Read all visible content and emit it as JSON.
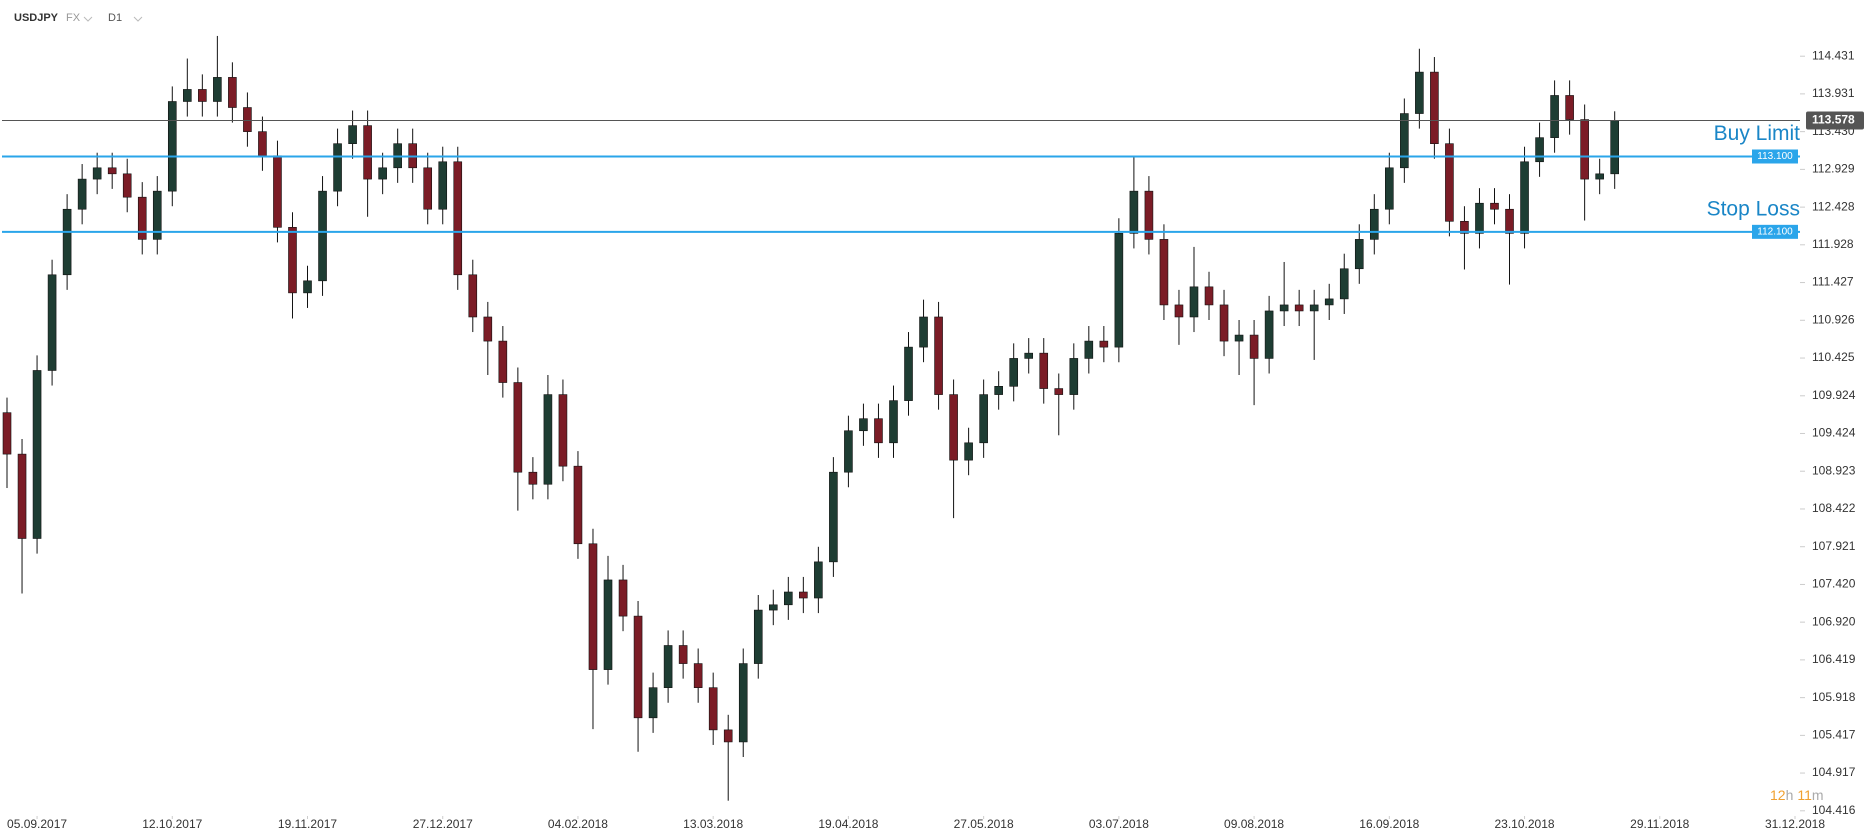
{
  "chart_data": {
    "type": "candlestick",
    "symbol": "USDJPY",
    "market": "FX",
    "interval": "D1",
    "x": [
      0,
      3,
      6,
      9,
      12,
      15,
      18,
      21,
      24,
      27,
      30,
      33,
      36,
      39,
      42,
      45,
      48,
      51,
      54,
      57,
      60,
      63,
      66,
      69,
      72,
      75,
      78,
      81,
      84,
      87,
      90,
      93,
      96,
      99,
      102,
      105,
      108,
      111,
      114,
      117,
      120,
      123,
      126,
      129,
      132,
      135,
      138,
      141,
      144,
      147,
      150,
      153,
      156,
      159,
      162,
      165,
      168,
      171,
      174,
      177,
      180,
      183,
      186,
      189,
      192,
      195,
      198,
      201,
      204,
      207,
      210,
      213,
      216,
      219,
      222,
      225,
      228,
      231,
      234,
      237,
      240,
      243,
      246,
      249,
      252,
      255,
      258,
      261,
      264,
      267,
      270,
      273,
      276,
      279,
      282,
      285,
      288,
      291,
      294,
      297,
      300,
      303,
      306,
      309,
      312,
      315,
      318,
      321
    ],
    "open": [
      109.7,
      109.15,
      108.03,
      110.26,
      111.53,
      112.4,
      112.8,
      112.95,
      112.87,
      112.56,
      112.0,
      112.64,
      113.83,
      113.99,
      113.83,
      114.15,
      113.75,
      113.43,
      113.11,
      112.16,
      111.29,
      111.45,
      112.64,
      113.27,
      113.51,
      112.8,
      112.95,
      113.27,
      112.95,
      112.4,
      113.03,
      111.53,
      110.97,
      110.65,
      110.1,
      108.91,
      108.75,
      109.94,
      108.99,
      107.96,
      106.29,
      107.48,
      107.0,
      105.65,
      106.05,
      106.61,
      106.37,
      106.05,
      105.49,
      105.33,
      106.37,
      107.08,
      107.15,
      107.32,
      107.24,
      107.72,
      108.91,
      109.46,
      109.62,
      109.3,
      109.86,
      110.57,
      110.97,
      109.94,
      109.07,
      109.3,
      109.94,
      110.05,
      110.42,
      110.49,
      110.02,
      109.94,
      110.42,
      110.65,
      110.57,
      112.08,
      112.64,
      112.0,
      111.13,
      110.97,
      111.37,
      111.13,
      110.65,
      110.73,
      110.42,
      111.05,
      111.13,
      111.05,
      111.13,
      111.21,
      111.61,
      112.0,
      112.4,
      112.95,
      113.67,
      114.22,
      113.27,
      112.24,
      112.08,
      112.48,
      112.4,
      112.08,
      113.03,
      113.35,
      113.91,
      113.59,
      112.8,
      112.87
    ],
    "high": [
      109.9,
      109.35,
      110.46,
      111.73,
      112.6,
      113.0,
      113.15,
      113.15,
      113.07,
      112.76,
      112.84,
      114.03,
      114.4,
      114.19,
      114.7,
      114.35,
      113.95,
      113.63,
      113.31,
      112.36,
      111.65,
      112.84,
      113.47,
      113.71,
      113.71,
      113.15,
      113.47,
      113.47,
      113.15,
      113.23,
      113.23,
      111.73,
      111.17,
      110.85,
      110.3,
      109.11,
      110.2,
      110.14,
      109.19,
      108.16,
      107.8,
      107.68,
      107.2,
      106.25,
      106.81,
      106.81,
      106.57,
      106.25,
      105.69,
      106.57,
      107.28,
      107.35,
      107.52,
      107.52,
      107.92,
      109.11,
      109.66,
      109.82,
      109.82,
      110.06,
      110.77,
      111.2,
      111.17,
      110.14,
      109.5,
      110.14,
      110.25,
      110.62,
      110.69,
      110.69,
      110.22,
      110.62,
      110.85,
      110.85,
      112.28,
      113.1,
      112.84,
      112.2,
      111.33,
      111.9,
      111.57,
      111.33,
      110.93,
      110.93,
      111.25,
      111.7,
      111.33,
      111.33,
      111.41,
      111.81,
      112.2,
      112.6,
      113.15,
      113.87,
      114.53,
      114.42,
      113.47,
      112.44,
      112.68,
      112.68,
      112.6,
      113.23,
      113.55,
      114.11,
      114.11,
      113.79,
      113.07,
      113.7
    ],
    "low": [
      108.7,
      107.3,
      107.83,
      110.06,
      111.33,
      112.2,
      112.6,
      112.67,
      112.36,
      111.8,
      111.8,
      112.44,
      113.63,
      113.63,
      113.63,
      113.55,
      113.23,
      112.91,
      111.96,
      110.95,
      111.09,
      111.25,
      112.44,
      113.07,
      112.3,
      112.6,
      112.75,
      112.75,
      112.2,
      112.2,
      111.33,
      110.77,
      110.2,
      109.9,
      108.4,
      108.55,
      108.55,
      108.79,
      107.76,
      105.5,
      106.09,
      106.8,
      105.2,
      105.45,
      105.85,
      106.17,
      105.85,
      105.29,
      104.55,
      105.13,
      106.17,
      106.88,
      106.95,
      107.04,
      107.04,
      107.52,
      108.71,
      109.26,
      109.1,
      109.1,
      109.66,
      110.37,
      109.74,
      108.3,
      108.87,
      109.1,
      109.74,
      109.85,
      110.22,
      109.82,
      109.4,
      109.74,
      110.22,
      110.37,
      110.37,
      111.88,
      111.8,
      110.93,
      110.6,
      110.77,
      110.93,
      110.45,
      110.2,
      109.8,
      110.22,
      110.85,
      110.85,
      110.4,
      110.93,
      111.01,
      111.41,
      111.8,
      112.2,
      112.75,
      113.47,
      113.07,
      112.04,
      111.6,
      111.88,
      112.2,
      111.4,
      111.88,
      112.83,
      113.15,
      113.39,
      112.25,
      112.6,
      112.67
    ],
    "close": [
      109.15,
      108.03,
      110.26,
      111.53,
      112.4,
      112.8,
      112.95,
      112.87,
      112.56,
      112.0,
      112.64,
      113.83,
      113.99,
      113.83,
      114.15,
      113.75,
      113.43,
      113.11,
      112.16,
      111.29,
      111.45,
      112.64,
      113.27,
      113.51,
      112.8,
      112.95,
      113.27,
      112.95,
      112.4,
      113.03,
      111.53,
      110.97,
      110.65,
      110.1,
      108.91,
      108.75,
      109.94,
      108.99,
      107.96,
      106.29,
      107.48,
      107.0,
      105.65,
      106.05,
      106.61,
      106.37,
      106.05,
      105.49,
      105.33,
      106.37,
      107.08,
      107.15,
      107.32,
      107.24,
      107.72,
      108.91,
      109.46,
      109.62,
      109.3,
      109.86,
      110.57,
      110.97,
      109.94,
      109.07,
      109.3,
      109.94,
      110.05,
      110.42,
      110.49,
      110.02,
      109.94,
      110.42,
      110.65,
      110.57,
      112.08,
      112.64,
      112.0,
      111.13,
      110.97,
      111.37,
      111.13,
      110.65,
      110.73,
      110.42,
      111.05,
      111.13,
      111.05,
      111.13,
      111.21,
      111.61,
      112.0,
      112.4,
      112.95,
      113.67,
      114.22,
      113.27,
      112.24,
      112.08,
      112.48,
      112.4,
      112.08,
      113.03,
      113.35,
      113.91,
      113.59,
      112.8,
      112.87,
      113.58
    ],
    "up_color": "#1e3d33",
    "down_color": "#7b1c26",
    "xlim": [
      -1,
      358
    ],
    "xticks": [
      {
        "value": 6,
        "label": "05.09.2017"
      },
      {
        "value": 33,
        "label": "12.10.2017"
      },
      {
        "value": 60,
        "label": "19.11.2017"
      },
      {
        "value": 87,
        "label": "27.12.2017"
      },
      {
        "value": 114,
        "label": "04.02.2018"
      },
      {
        "value": 141,
        "label": "13.03.2018"
      },
      {
        "value": 168,
        "label": "19.04.2018"
      },
      {
        "value": 195,
        "label": "27.05.2018"
      },
      {
        "value": 222,
        "label": "03.07.2018"
      },
      {
        "value": 249,
        "label": "09.08.2018"
      },
      {
        "value": 276,
        "label": "16.09.2018"
      },
      {
        "value": 303,
        "label": "23.10.2018"
      },
      {
        "value": 330,
        "label": "29.11.2018"
      },
      {
        "value": 357,
        "label": "31.12.2018"
      }
    ],
    "ylim": [
      104.347,
      115.177
    ],
    "yticks": [
      114.431,
      113.931,
      {
        "value": 113.43,
        "label": "113.430"
      },
      112.929,
      112.428,
      111.928,
      111.427,
      110.926,
      110.425,
      109.924,
      109.424,
      108.923,
      108.422,
      107.921,
      {
        "value": 107.42,
        "label": "107.420"
      },
      {
        "value": 106.92,
        "label": "106.920"
      },
      106.419,
      105.918,
      105.417,
      104.917,
      104.416
    ],
    "current_price": {
      "value": 113.578,
      "color": "#555555"
    },
    "levels": [
      {
        "name": "Buy Limit",
        "value": 113.1,
        "value_label": "113.100",
        "color": "#2aa5ea"
      },
      {
        "name": "Stop Loss",
        "value": 112.1,
        "value_label": "112.100",
        "color": "#2aa5ea"
      }
    ],
    "countdown": [
      {
        "text": "12",
        "color": "#f0a030"
      },
      {
        "text": "h",
        "color": "#aaaaaa"
      },
      {
        "text": "11",
        "color": "#f0a030"
      },
      {
        "text": "m",
        "color": "#aaaaaa"
      }
    ]
  }
}
